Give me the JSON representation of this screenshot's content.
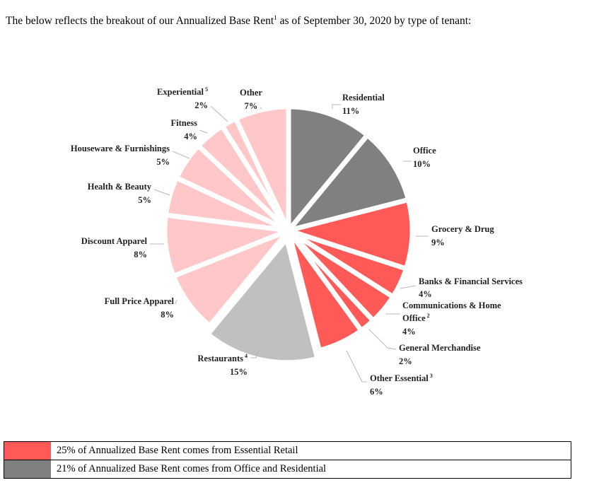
{
  "intro": {
    "before": "The below reflects the breakout of our Annualized Base Rent",
    "sup": "1",
    "after": " as of September 30, 2020 by type of tenant:"
  },
  "chart_data": {
    "type": "pie",
    "slices": [
      {
        "name": "Residential",
        "sup": "",
        "value": 11,
        "label": "11%",
        "color": "#808080"
      },
      {
        "name": "Office",
        "sup": "",
        "value": 10,
        "label": "10%",
        "color": "#808080"
      },
      {
        "name": "Grocery & Drug",
        "sup": "",
        "value": 9,
        "label": "9%",
        "color": "#ff5a57"
      },
      {
        "name": "Banks & Financial Services",
        "sup": "",
        "value": 4,
        "label": "4%",
        "color": "#ff5a57"
      },
      {
        "name": "Communications & Home Office",
        "sup": "2",
        "value": 4,
        "label": "4%",
        "color": "#ff5a57"
      },
      {
        "name": "General Merchandise",
        "sup": "",
        "value": 2,
        "label": "2%",
        "color": "#ff5a57"
      },
      {
        "name": "Other Essential",
        "sup": "3",
        "value": 6,
        "label": "6%",
        "color": "#ff5a57"
      },
      {
        "name": "Restaurants",
        "sup": "4",
        "value": 15,
        "label": "15%",
        "color": "#c0c0c0"
      },
      {
        "name": "Full Price Apparel",
        "sup": "",
        "value": 8,
        "label": "8%",
        "color": "#ffc7c7"
      },
      {
        "name": "Discount Apparel",
        "sup": "",
        "value": 8,
        "label": "8%",
        "color": "#ffc7c7"
      },
      {
        "name": "Health & Beauty",
        "sup": "",
        "value": 5,
        "label": "5%",
        "color": "#ffc7c7"
      },
      {
        "name": "Houseware & Furnishings",
        "sup": "",
        "value": 5,
        "label": "5%",
        "color": "#ffc7c7"
      },
      {
        "name": "Fitness",
        "sup": "",
        "value": 4,
        "label": "4%",
        "color": "#ffc7c7"
      },
      {
        "name": "Experiential",
        "sup": "5",
        "value": 2,
        "label": "2%",
        "color": "#ffc7c7"
      },
      {
        "name": "Other",
        "sup": "",
        "value": 7,
        "label": "7%",
        "color": "#ffc7c7"
      }
    ],
    "exploded_slices": [
      "Restaurants"
    ]
  },
  "legend": [
    {
      "text": "25% of Annualized Base Rent comes from Essential Retail",
      "color": "#ff5a57"
    },
    {
      "text": "21% of Annualized Base Rent comes from Office and Residential",
      "color": "#808080"
    }
  ]
}
